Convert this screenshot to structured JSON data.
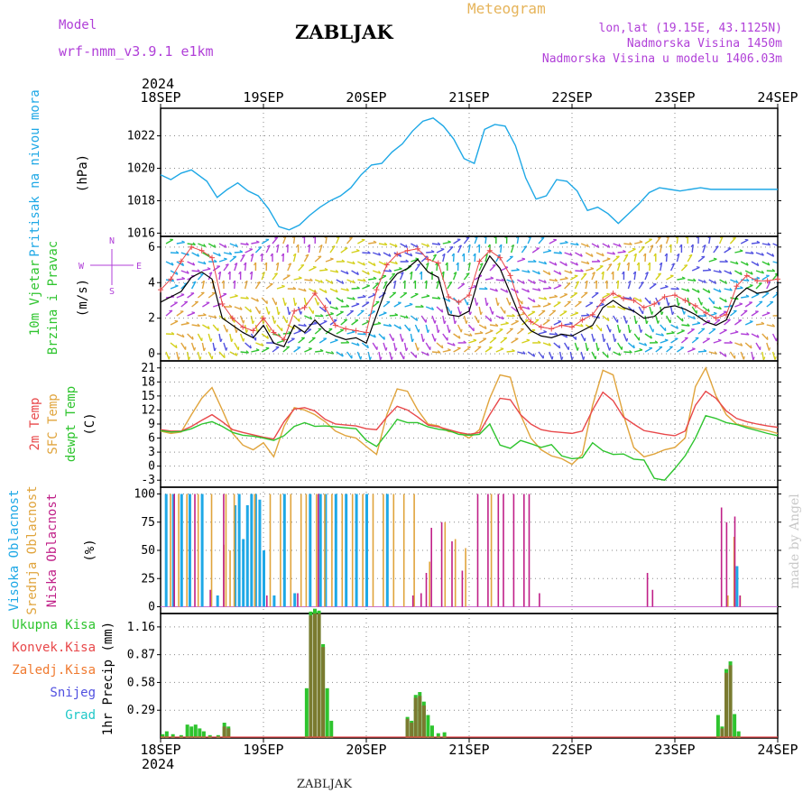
{
  "header": {
    "model_label": "Model",
    "model_name": "wrf-nmm_v3.9.1 e1km",
    "station": "ZABLJAK",
    "meteogram_label": "Meteogram",
    "coords": "lon,lat (19.15E, 43.1125N)",
    "elevation": "Nadmorska Visina 1450m",
    "model_elevation": "Nadmorska Visina u modelu 1406.03m",
    "year_top": "2024",
    "year_bottom": "2024",
    "footer_station": "ZABLJAK",
    "watermark": "made by Angel"
  },
  "colors": {
    "pressure": "#1ea8e6",
    "temp2m": "#e8484a",
    "sfc": "#e0a43c",
    "dew": "#2ec42e",
    "high_cloud": "#1ea8e6",
    "mid_cloud": "#e0a43c",
    "low_cloud": "#c02088",
    "total": "#2ec42e",
    "conv": "#e8484a",
    "frozen": "#f07a30",
    "snow": "#5050e0",
    "hail": "#20c8c8",
    "wind_compass": "#b03fd8"
  },
  "chart_data": [
    {
      "type": "line",
      "id": "pressure",
      "panel_label": "Pritisak na nivou mora",
      "unit": "(hPa)",
      "x_ticks": [
        "18SEP",
        "19SEP",
        "20SEP",
        "21SEP",
        "22SEP",
        "23SEP",
        "24SEP"
      ],
      "ylim": [
        1015.8,
        1023.7
      ],
      "yticks": [
        1016,
        1018,
        1020,
        1022
      ],
      "x_days": [
        0,
        0.1,
        0.2,
        0.3,
        0.45,
        0.55,
        0.65,
        0.75,
        0.85,
        0.95,
        1.05,
        1.15,
        1.25,
        1.35,
        1.45,
        1.55,
        1.65,
        1.75,
        1.85,
        1.95,
        2.05,
        2.15,
        2.25,
        2.35,
        2.45,
        2.55,
        2.65,
        2.75,
        2.85,
        2.95,
        3.05,
        3.15,
        3.25,
        3.35,
        3.45,
        3.55,
        3.65,
        3.75,
        3.85,
        3.95,
        4.05,
        4.15,
        4.25,
        4.35,
        4.45,
        4.55,
        4.65,
        4.75,
        4.85,
        4.95,
        5.05,
        5.15,
        5.25,
        5.35,
        5.45,
        5.55,
        5.65,
        5.75,
        5.85,
        5.95,
        6.0
      ],
      "series": [
        {
          "name": "Pritisak na nivou mora",
          "values": [
            1019.6,
            1019.3,
            1019.7,
            1019.9,
            1019.2,
            1018.2,
            1018.7,
            1019.1,
            1018.6,
            1018.3,
            1017.5,
            1016.4,
            1016.2,
            1016.5,
            1017.1,
            1017.6,
            1018.0,
            1018.3,
            1018.8,
            1019.6,
            1020.2,
            1020.3,
            1021.0,
            1021.5,
            1022.3,
            1022.9,
            1023.1,
            1022.6,
            1021.8,
            1020.6,
            1020.3,
            1022.4,
            1022.7,
            1022.6,
            1021.4,
            1019.4,
            1018.1,
            1018.3,
            1019.3,
            1019.2,
            1018.6,
            1017.4,
            1017.6,
            1017.2,
            1016.6,
            1017.2,
            1017.8,
            1018.5,
            1018.8,
            1018.7,
            1018.6,
            1018.7,
            1018.8,
            1018.7,
            1018.7,
            1018.7,
            1018.7,
            1018.7,
            1018.7,
            1018.7,
            1018.7
          ]
        }
      ]
    },
    {
      "type": "line",
      "id": "wind",
      "panel_label_1": "10m Vjetar",
      "panel_label_2": "Brzina i Pravac",
      "unit": "(m/s)",
      "compass": [
        "N",
        "E",
        "W",
        "S"
      ],
      "ylim": [
        -0.4,
        6.6
      ],
      "yticks": [
        0,
        2,
        4,
        6
      ],
      "x_days": [
        0,
        0.1,
        0.2,
        0.3,
        0.4,
        0.5,
        0.6,
        0.7,
        0.8,
        0.9,
        1.0,
        1.1,
        1.2,
        1.3,
        1.4,
        1.5,
        1.6,
        1.7,
        1.8,
        1.9,
        2.0,
        2.1,
        2.2,
        2.3,
        2.4,
        2.5,
        2.6,
        2.7,
        2.8,
        2.9,
        3.0,
        3.1,
        3.2,
        3.3,
        3.4,
        3.5,
        3.6,
        3.7,
        3.8,
        3.9,
        4.0,
        4.1,
        4.2,
        4.3,
        4.4,
        4.5,
        4.6,
        4.7,
        4.8,
        4.9,
        5.0,
        5.1,
        5.2,
        5.3,
        5.4,
        5.5,
        5.6,
        5.7,
        5.8,
        5.9,
        6.0
      ],
      "series": [
        {
          "name": "speed",
          "values": [
            2.9,
            3.2,
            3.5,
            4.3,
            4.6,
            4.2,
            2.0,
            1.6,
            1.2,
            0.9,
            1.6,
            0.6,
            0.4,
            1.6,
            1.2,
            1.9,
            1.3,
            1.0,
            0.8,
            0.9,
            0.6,
            2.2,
            3.8,
            4.5,
            4.8,
            5.3,
            4.6,
            4.3,
            2.2,
            2.1,
            2.4,
            4.4,
            5.5,
            4.8,
            3.4,
            2.0,
            1.3,
            1.0,
            0.9,
            1.1,
            1.0,
            1.3,
            1.6,
            2.6,
            3.0,
            2.6,
            2.4,
            2.0,
            2.1,
            2.6,
            2.7,
            2.5,
            2.2,
            1.8,
            1.6,
            1.9,
            3.2,
            3.7,
            3.4,
            3.5,
            3.8
          ]
        },
        {
          "name": "gust",
          "values": [
            3.6,
            4.2,
            5.2,
            6.0,
            5.8,
            5.4,
            2.8,
            2.0,
            1.5,
            1.3,
            2.0,
            1.2,
            0.8,
            2.4,
            2.6,
            3.4,
            2.6,
            1.6,
            1.4,
            1.3,
            1.2,
            3.6,
            5.0,
            5.6,
            5.8,
            5.9,
            5.3,
            5.1,
            3.2,
            2.9,
            3.3,
            5.2,
            5.8,
            5.4,
            4.4,
            2.6,
            1.8,
            1.5,
            1.4,
            1.6,
            1.5,
            1.9,
            2.2,
            3.0,
            3.4,
            3.1,
            3.0,
            2.6,
            2.8,
            3.2,
            3.3,
            3.0,
            2.7,
            2.3,
            2.0,
            2.2,
            3.8,
            4.4,
            4.1,
            4.1,
            4.2
          ]
        }
      ]
    },
    {
      "type": "line",
      "id": "temperature",
      "panel_label_1": "2m Temp",
      "panel_label_2": "SFC Temp",
      "panel_label_3": "dewpt Temp",
      "unit": "(C)",
      "ylim": [
        -4.5,
        22.5
      ],
      "yticks": [
        -3,
        0,
        3,
        6,
        9,
        12,
        15,
        18,
        21
      ],
      "x_days": [
        0,
        0.1,
        0.2,
        0.3,
        0.4,
        0.5,
        0.6,
        0.7,
        0.8,
        0.9,
        1.0,
        1.1,
        1.2,
        1.3,
        1.4,
        1.5,
        1.6,
        1.7,
        1.8,
        1.9,
        2.0,
        2.1,
        2.2,
        2.3,
        2.4,
        2.5,
        2.6,
        2.7,
        2.8,
        2.9,
        3.0,
        3.1,
        3.2,
        3.3,
        3.4,
        3.5,
        3.6,
        3.7,
        3.8,
        3.9,
        4.0,
        4.1,
        4.2,
        4.3,
        4.4,
        4.5,
        4.6,
        4.7,
        4.8,
        4.9,
        5.0,
        5.1,
        5.2,
        5.3,
        5.4,
        5.5,
        5.6,
        5.7,
        5.8,
        5.9,
        6.0
      ],
      "series": [
        {
          "name": "2m Temp",
          "values": [
            7.8,
            7.5,
            7.5,
            8.5,
            9.8,
            11.0,
            9.5,
            7.8,
            7.2,
            6.7,
            6.2,
            5.8,
            9.5,
            12.2,
            12.5,
            11.8,
            10.0,
            9.0,
            8.8,
            8.6,
            8.0,
            7.8,
            10.5,
            12.8,
            12.0,
            10.5,
            8.8,
            8.4,
            7.8,
            7.2,
            6.8,
            7.2,
            11.0,
            14.5,
            14.2,
            11.0,
            9.0,
            7.8,
            7.4,
            7.2,
            7.0,
            7.5,
            12.0,
            15.8,
            14.0,
            10.5,
            9.0,
            7.6,
            7.2,
            6.8,
            6.5,
            7.5,
            13.0,
            16.0,
            14.5,
            11.8,
            10.2,
            9.5,
            9.0,
            8.6,
            8.3
          ]
        },
        {
          "name": "SFC Temp",
          "values": [
            7.5,
            7.0,
            7.3,
            11.0,
            14.5,
            16.8,
            12.0,
            7.0,
            4.5,
            3.5,
            5.0,
            2.0,
            8.5,
            12.5,
            12.0,
            11.0,
            9.5,
            7.5,
            6.5,
            6.0,
            4.2,
            2.5,
            11.0,
            16.5,
            16.0,
            12.0,
            9.0,
            8.6,
            7.4,
            7.2,
            6.0,
            7.8,
            14.5,
            19.5,
            19.0,
            11.0,
            6.0,
            3.5,
            2.2,
            1.6,
            0.4,
            2.5,
            13.0,
            20.5,
            19.5,
            11.0,
            4.0,
            2.0,
            2.6,
            3.5,
            4.0,
            6.0,
            17.0,
            21.0,
            15.0,
            11.0,
            9.0,
            8.5,
            8.0,
            7.6,
            7.0
          ]
        },
        {
          "name": "dewpt Temp",
          "values": [
            7.6,
            7.3,
            7.4,
            8.0,
            9.0,
            9.5,
            8.5,
            7.2,
            6.6,
            6.4,
            6.0,
            5.5,
            6.5,
            8.5,
            9.3,
            8.5,
            8.6,
            8.4,
            8.2,
            8.0,
            5.5,
            4.2,
            7.0,
            10.0,
            9.3,
            9.3,
            8.4,
            7.9,
            7.6,
            6.8,
            6.6,
            6.8,
            9.0,
            4.5,
            3.8,
            5.5,
            4.8,
            4.0,
            4.6,
            2.2,
            1.6,
            1.8,
            5.0,
            3.3,
            2.5,
            2.6,
            1.5,
            1.3,
            -2.6,
            -3.0,
            -0.5,
            2.2,
            6.0,
            10.8,
            10.2,
            9.3,
            8.9,
            8.2,
            7.6,
            7.0,
            6.5
          ]
        }
      ]
    },
    {
      "type": "bar",
      "id": "clouds",
      "panel_label_1": "Visoka Oblacnost",
      "panel_label_2": "Srednja Oblacnost",
      "panel_label_3": "Niska Oblacnost",
      "unit": "(%)",
      "ylim": [
        -6,
        106
      ],
      "yticks": [
        0,
        25,
        50,
        75,
        100
      ],
      "series": [
        {
          "name": "Visoka Oblacnost",
          "x_days": [
            0.05,
            0.12,
            0.2,
            0.28,
            0.4,
            0.55,
            0.72,
            0.76,
            0.8,
            0.84,
            0.88,
            0.92,
            0.96,
            1.0,
            1.1,
            1.2,
            1.3,
            1.45,
            1.55,
            1.6,
            1.7,
            1.8,
            1.9,
            2.0,
            2.2,
            5.6
          ],
          "values": [
            100,
            100,
            100,
            100,
            100,
            10,
            90,
            100,
            60,
            90,
            100,
            100,
            95,
            50,
            10,
            100,
            12,
            100,
            100,
            100,
            100,
            100,
            100,
            100,
            100,
            36
          ]
        },
        {
          "name": "Srednja Oblacnost",
          "x_days": [
            0.08,
            0.16,
            0.24,
            0.35,
            0.48,
            0.6,
            0.62,
            0.66,
            0.7,
            0.9,
            1.05,
            1.15,
            1.25,
            1.35,
            1.4,
            1.5,
            1.58,
            1.65,
            1.75,
            1.85,
            1.95,
            2.05,
            2.15,
            2.25,
            2.35,
            2.45,
            2.6,
            2.75,
            2.85,
            2.95,
            3.2,
            5.5,
            5.56,
            5.62
          ],
          "values": [
            100,
            100,
            100,
            100,
            100,
            55,
            100,
            50,
            100,
            100,
            100,
            100,
            100,
            100,
            100,
            100,
            100,
            100,
            100,
            100,
            100,
            100,
            100,
            100,
            100,
            100,
            40,
            75,
            60,
            52,
            100,
            10,
            62,
            10
          ]
        },
        {
          "name": "Niska Oblacnost",
          "x_days": [
            0.1,
            0.3,
            0.45,
            0.58,
            1.0,
            1.3,
            1.5,
            2.42,
            2.5,
            2.55,
            2.6,
            2.7,
            2.8,
            2.9,
            3.05,
            3.15,
            3.25,
            3.3,
            3.4,
            3.5,
            3.55,
            3.65,
            4.7,
            4.75,
            5.42,
            5.47,
            5.55,
            5.6
          ],
          "values": [
            100,
            100,
            15,
            100,
            10,
            12,
            100,
            10,
            12,
            30,
            70,
            75,
            58,
            32,
            100,
            100,
            100,
            100,
            100,
            100,
            100,
            12,
            30,
            15,
            88,
            75,
            80,
            10
          ]
        }
      ]
    },
    {
      "type": "bar",
      "id": "precip",
      "panel_label": "1hr Precip",
      "unit": "(mm)",
      "legend": [
        "Ukupna Kisa",
        "Konvek.Kisa",
        "Zaledj.Kisa",
        "Snijeg",
        "Grad"
      ],
      "ylim": [
        0,
        1.3
      ],
      "yticks": [
        "0.29",
        "0.58",
        "0.87",
        "1.16"
      ],
      "series": [
        {
          "name": "Ukupna Kisa",
          "x_days": [
            0.02,
            0.06,
            0.12,
            0.2,
            0.26,
            0.3,
            0.34,
            0.38,
            0.42,
            0.48,
            0.56,
            0.62,
            0.66,
            1.42,
            1.46,
            1.5,
            1.54,
            1.58,
            1.62,
            1.66,
            2.4,
            2.44,
            2.48,
            2.52,
            2.56,
            2.6,
            2.64,
            2.7,
            2.76,
            5.42,
            5.46,
            5.5,
            5.54,
            5.58,
            5.62
          ],
          "values": [
            0.04,
            0.07,
            0.04,
            0.03,
            0.14,
            0.12,
            0.14,
            0.1,
            0.07,
            0.03,
            0.03,
            0.16,
            0.12,
            0.52,
            1.32,
            1.35,
            1.33,
            0.98,
            0.52,
            0.18,
            0.22,
            0.18,
            0.45,
            0.48,
            0.38,
            0.24,
            0.13,
            0.05,
            0.06,
            0.24,
            0.12,
            0.72,
            0.8,
            0.25,
            0.07
          ]
        },
        {
          "name": "Konvek.Kisa",
          "x_days": [
            0.62,
            0.66,
            1.46,
            1.5,
            1.54,
            1.58,
            2.4,
            2.44,
            2.48,
            2.52,
            2.56,
            5.46,
            5.5,
            5.54
          ],
          "values": [
            0.12,
            0.1,
            1.28,
            1.3,
            1.3,
            0.95,
            0.2,
            0.16,
            0.42,
            0.44,
            0.34,
            0.1,
            0.68,
            0.76
          ]
        }
      ]
    }
  ]
}
